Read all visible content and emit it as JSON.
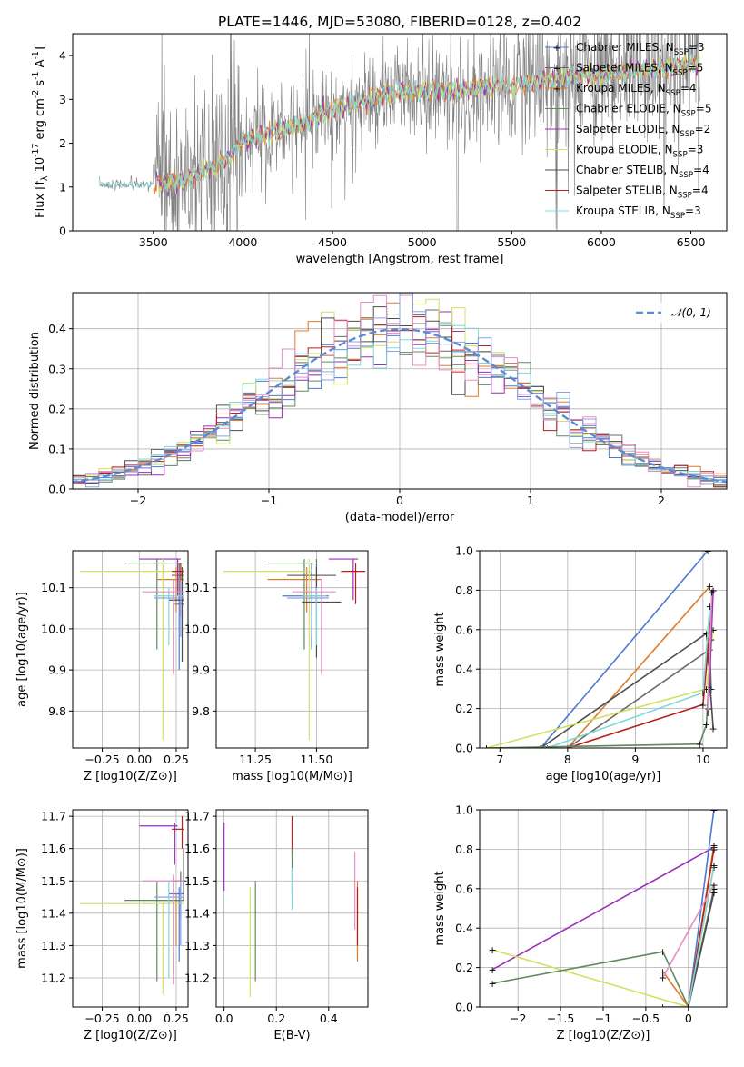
{
  "palette": {
    "Chabrier MILES": "#4b7bd1",
    "Salpeter MILES": "#6b6b6b",
    "Kroupa MILES": "#e07b2a",
    "Chabrier ELODIE": "#5e8a5e",
    "Salpeter ELODIE": "#9b2fb8",
    "Kroupa ELODIE": "#d4e060",
    "Chabrier STELIB": "#4d4d4d",
    "Salpeter STELIB": "#b81f1f",
    "Kroupa STELIB": "#7fd8d8",
    "extra1": "#e58fc7",
    "extra2": "#8aa0e8",
    "normal": "#5b8bd6",
    "data": "#808080"
  },
  "chart_data": [
    {
      "type": "line",
      "title": "PLATE=1446, MJD=53080, FIBERID=0128, z=0.402",
      "xlabel": "wavelength [Angstrom, rest frame]",
      "ylabel": "Flux [f_λ 10^-17 erg cm^-2 s^-1 A^-1]",
      "xlim": [
        3050,
        6700
      ],
      "ylim": [
        0,
        4.5
      ],
      "xticks": [
        3500,
        4000,
        4500,
        5000,
        5500,
        6000,
        6500
      ],
      "yticks": [
        0,
        1,
        2,
        3,
        4
      ],
      "grid": false,
      "legend_position": "top-right",
      "legend": [
        "Chabrier MILES, N_SSP=3",
        "Salpeter MILES, N_SSP=5",
        "Kroupa MILES, N_SSP=4",
        "Chabrier ELODIE, N_SSP=5",
        "Salpeter ELODIE, N_SSP=2",
        "Kroupa ELODIE, N_SSP=3",
        "Chabrier STELIB, N_SSP=4",
        "Salpeter STELIB, N_SSP=4",
        "Kroupa STELIB, N_SSP=3"
      ],
      "continuum": {
        "x": [
          3200,
          3500,
          3700,
          3900,
          4000,
          4100,
          4300,
          4500,
          4700,
          4900,
          5100,
          5300,
          5500,
          5700,
          5900,
          6100,
          6300,
          6550
        ],
        "y": [
          1.05,
          1.05,
          1.2,
          1.6,
          2.0,
          2.2,
          2.4,
          2.75,
          3.0,
          3.2,
          3.2,
          3.25,
          3.3,
          3.45,
          3.55,
          3.6,
          3.7,
          3.85
        ]
      }
    },
    {
      "type": "line",
      "xlabel": "(data-model)/error",
      "ylabel": "Normed distribution",
      "xlim": [
        -2.5,
        2.5
      ],
      "ylim": [
        0,
        0.49
      ],
      "xticks": [
        -2,
        -1,
        0,
        1,
        2
      ],
      "yticks": [
        0.0,
        0.1,
        0.2,
        0.3,
        0.4
      ],
      "grid": true,
      "legend_position": "top-right",
      "legend": [
        "𝒩(0, 1)"
      ],
      "bin_width": 0.1
    },
    {
      "type": "scatter",
      "xlabel": "Z [log10(Z/Z⊙)]",
      "ylabel": "age [log10(age/yr)]",
      "xlim": [
        -0.45,
        0.33
      ],
      "ylim": [
        9.71,
        10.19
      ],
      "xticks": [
        -0.25,
        0.0,
        0.25
      ],
      "yticks": [
        9.8,
        9.9,
        10.0,
        10.1
      ],
      "grid": true,
      "points": [
        {
          "c": "Chabrier MILES",
          "x": 0.27,
          "xlo": 0.24,
          "xhi": 0.3,
          "y": 10.06,
          "ylo": 9.9,
          "yhi": 10.08
        },
        {
          "c": "Salpeter MILES",
          "x": 0.27,
          "xlo": 0.22,
          "xhi": 0.3,
          "y": 10.13,
          "ylo": 10.07,
          "yhi": 10.16
        },
        {
          "c": "Kroupa MILES",
          "x": 0.25,
          "xlo": 0.12,
          "xhi": 0.3,
          "y": 10.12,
          "ylo": 10.04,
          "yhi": 10.15
        },
        {
          "c": "Chabrier ELODIE",
          "x": 0.12,
          "xlo": -0.1,
          "xhi": 0.3,
          "y": 10.16,
          "ylo": 9.95,
          "yhi": 10.17
        },
        {
          "c": "Salpeter ELODIE",
          "x": 0.26,
          "xlo": 0.0,
          "xhi": 0.28,
          "y": 10.17,
          "ylo": 10.08,
          "yhi": 10.17
        },
        {
          "c": "Kroupa ELODIE",
          "x": 0.16,
          "xlo": -0.4,
          "xhi": 0.3,
          "y": 10.14,
          "ylo": 9.73,
          "yhi": 10.17
        },
        {
          "c": "Chabrier STELIB",
          "x": 0.29,
          "xlo": 0.2,
          "xhi": 0.3,
          "y": 10.07,
          "ylo": 9.92,
          "yhi": 10.15
        },
        {
          "c": "Salpeter STELIB",
          "x": 0.28,
          "xlo": 0.22,
          "xhi": 0.3,
          "y": 10.14,
          "ylo": 10.03,
          "yhi": 10.16
        },
        {
          "c": "Kroupa STELIB",
          "x": 0.2,
          "xlo": 0.1,
          "xhi": 0.3,
          "y": 10.08,
          "ylo": 9.96,
          "yhi": 10.1
        },
        {
          "c": "extra1",
          "x": 0.23,
          "xlo": 0.02,
          "xhi": 0.3,
          "y": 10.09,
          "ylo": 9.89,
          "yhi": 10.12
        },
        {
          "c": "extra2",
          "x": 0.28,
          "xlo": 0.1,
          "xhi": 0.3,
          "y": 10.075,
          "ylo": 9.98,
          "yhi": 10.12
        }
      ]
    },
    {
      "type": "scatter",
      "xlabel": "mass [log10(M/M⊙)]",
      "ylabel": "",
      "xlim": [
        11.09,
        11.71
      ],
      "ylim": [
        9.71,
        10.19
      ],
      "xticks": [
        11.25,
        11.5
      ],
      "yticks": [
        9.8,
        9.9,
        10.0,
        10.1
      ],
      "grid": true,
      "points": [
        {
          "c": "Chabrier MILES",
          "x": 11.48,
          "xlo": 11.36,
          "xhi": 11.55,
          "y": 10.08,
          "ylo": 9.95,
          "yhi": 10.16
        },
        {
          "c": "Salpeter MILES",
          "x": 11.5,
          "xlo": 11.38,
          "xhi": 11.58,
          "y": 10.13,
          "ylo": 10.07,
          "yhi": 10.17
        },
        {
          "c": "Kroupa MILES",
          "x": 11.46,
          "xlo": 11.3,
          "xhi": 11.52,
          "y": 10.12,
          "ylo": 10.04,
          "yhi": 10.15
        },
        {
          "c": "Chabrier ELODIE",
          "x": 11.45,
          "xlo": 11.3,
          "xhi": 11.49,
          "y": 10.16,
          "ylo": 9.95,
          "yhi": 10.17
        },
        {
          "c": "Salpeter ELODIE",
          "x": 11.65,
          "xlo": 11.55,
          "xhi": 11.67,
          "y": 10.17,
          "ylo": 10.07,
          "yhi": 10.17
        },
        {
          "c": "Kroupa ELODIE",
          "x": 11.47,
          "xlo": 11.12,
          "xhi": 11.48,
          "y": 10.14,
          "ylo": 9.73,
          "yhi": 10.17
        },
        {
          "c": "Chabrier STELIB",
          "x": 11.5,
          "xlo": 11.44,
          "xhi": 11.6,
          "y": 10.065,
          "ylo": 9.93,
          "yhi": 10.15
        },
        {
          "c": "Salpeter STELIB",
          "x": 11.66,
          "xlo": 11.6,
          "xhi": 11.7,
          "y": 10.14,
          "ylo": 10.06,
          "yhi": 10.16
        },
        {
          "c": "Kroupa STELIB",
          "x": 11.5,
          "xlo": 11.44,
          "xhi": 11.54,
          "y": 10.08,
          "ylo": 9.96,
          "yhi": 10.1
        },
        {
          "c": "extra1",
          "x": 11.52,
          "xlo": 11.4,
          "xhi": 11.58,
          "y": 10.09,
          "ylo": 9.89,
          "yhi": 10.12
        },
        {
          "c": "extra2",
          "x": 11.48,
          "xlo": 11.38,
          "xhi": 11.55,
          "y": 10.075,
          "ylo": 9.98,
          "yhi": 10.12
        }
      ]
    },
    {
      "type": "line",
      "xlabel": "age [log10(age/yr)]",
      "ylabel": "mass weight",
      "xlim": [
        6.7,
        10.35
      ],
      "ylim": [
        0.0,
        1.0
      ],
      "xticks": [
        7,
        8,
        9,
        10
      ],
      "yticks": [
        0.0,
        0.2,
        0.4,
        0.6,
        0.8,
        1.0
      ],
      "grid": true,
      "series": [
        {
          "c": "Chabrier MILES",
          "x": [
            7.6,
            10.07
          ],
          "y": [
            0.0,
            1.0
          ]
        },
        {
          "c": "Kroupa MILES",
          "x": [
            8.0,
            10.1
          ],
          "y": [
            0.0,
            0.82
          ]
        },
        {
          "c": "Salpeter MILES",
          "x": [
            8.0,
            10.1,
            10.12
          ],
          "y": [
            0.0,
            0.5,
            0.3
          ]
        },
        {
          "c": "Chabrier STELIB",
          "x": [
            7.6,
            10.05,
            10.15
          ],
          "y": [
            0.0,
            0.58,
            0.1
          ]
        },
        {
          "c": "Salpeter STELIB",
          "x": [
            8.0,
            10.0,
            10.15
          ],
          "y": [
            0.0,
            0.22,
            0.8
          ]
        },
        {
          "c": "Kroupa ELODIE",
          "x": [
            6.8,
            10.05,
            10.15
          ],
          "y": [
            0.0,
            0.3,
            0.6
          ]
        },
        {
          "c": "Kroupa STELIB",
          "x": [
            7.7,
            10.0,
            10.1
          ],
          "y": [
            0.0,
            0.28,
            0.72
          ]
        },
        {
          "c": "Chabrier ELODIE",
          "x": [
            6.8,
            9.95,
            10.05,
            10.12
          ],
          "y": [
            0.0,
            0.02,
            0.12,
            0.55
          ]
        },
        {
          "c": "Salpeter ELODIE",
          "x": [
            10.08,
            10.15
          ],
          "y": [
            0.2,
            0.8
          ]
        },
        {
          "c": "extra1",
          "x": [
            10.07,
            10.13
          ],
          "y": [
            0.18,
            0.79
          ]
        }
      ]
    },
    {
      "type": "scatter",
      "xlabel": "Z [log10(Z/Z⊙)]",
      "ylabel": "mass [log10(M/M⊙)]",
      "xlim": [
        -0.45,
        0.33
      ],
      "ylim": [
        11.11,
        11.72
      ],
      "xticks": [
        -0.25,
        0.0,
        0.25
      ],
      "yticks": [
        11.2,
        11.3,
        11.4,
        11.5,
        11.6,
        11.7
      ],
      "grid": true,
      "points": [
        {
          "c": "Chabrier MILES",
          "x": 0.27,
          "xlo": 0.2,
          "xhi": 0.3,
          "y": 11.46,
          "ylo": 11.25,
          "yhi": 11.48
        },
        {
          "c": "Salpeter MILES",
          "x": 0.28,
          "xlo": 0.22,
          "xhi": 0.3,
          "y": 11.5,
          "ylo": 11.38,
          "yhi": 11.53
        },
        {
          "c": "Kroupa MILES",
          "x": 0.25,
          "xlo": 0.12,
          "xhi": 0.3,
          "y": 11.44,
          "ylo": 11.3,
          "yhi": 11.46
        },
        {
          "c": "Chabrier ELODIE",
          "x": 0.12,
          "xlo": -0.1,
          "xhi": 0.3,
          "y": 11.44,
          "ylo": 11.19,
          "yhi": 11.5
        },
        {
          "c": "Salpeter ELODIE",
          "x": 0.24,
          "xlo": 0.0,
          "xhi": 0.26,
          "y": 11.67,
          "ylo": 11.55,
          "yhi": 11.68
        },
        {
          "c": "Kroupa ELODIE",
          "x": 0.16,
          "xlo": -0.4,
          "xhi": 0.3,
          "y": 11.43,
          "ylo": 11.15,
          "yhi": 11.43
        },
        {
          "c": "Chabrier STELIB",
          "x": 0.3,
          "xlo": 0.22,
          "xhi": 0.32,
          "y": 11.5,
          "ylo": 11.44,
          "yhi": 11.6
        },
        {
          "c": "Salpeter STELIB",
          "x": 0.29,
          "xlo": 0.22,
          "xhi": 0.3,
          "y": 11.66,
          "ylo": 11.6,
          "yhi": 11.7
        },
        {
          "c": "Kroupa STELIB",
          "x": 0.2,
          "xlo": 0.1,
          "xhi": 0.3,
          "y": 11.45,
          "ylo": 11.2,
          "yhi": 11.5
        },
        {
          "c": "extra1",
          "x": 0.23,
          "xlo": 0.02,
          "xhi": 0.3,
          "y": 11.5,
          "ylo": 11.18,
          "yhi": 11.52
        },
        {
          "c": "extra2",
          "x": 0.28,
          "xlo": 0.1,
          "xhi": 0.3,
          "y": 11.45,
          "ylo": 11.3,
          "yhi": 11.5
        }
      ]
    },
    {
      "type": "scatter",
      "xlabel": "E(B-V)",
      "ylabel": "",
      "xlim": [
        -0.03,
        0.55
      ],
      "ylim": [
        11.11,
        11.72
      ],
      "xticks": [
        0.0,
        0.2,
        0.4
      ],
      "yticks": [
        11.2,
        11.3,
        11.4,
        11.5,
        11.6,
        11.7
      ],
      "grid": true,
      "points": [
        {
          "c": "Salpeter ELODIE",
          "x": 0.0,
          "ylo": 11.47,
          "yhi": 11.68
        },
        {
          "c": "Kroupa ELODIE",
          "x": 0.1,
          "ylo": 11.14,
          "yhi": 11.48
        },
        {
          "c": "Chabrier ELODIE",
          "x": 0.12,
          "ylo": 11.19,
          "yhi": 11.5
        },
        {
          "c": "Salpeter STELIB",
          "x": 0.26,
          "ylo": 11.58,
          "yhi": 11.7
        },
        {
          "c": "Chabrier ELODIE",
          "x": 0.26,
          "ylo": 11.46,
          "yhi": 11.6
        },
        {
          "c": "Kroupa STELIB",
          "x": 0.26,
          "ylo": 11.41,
          "yhi": 11.54
        },
        {
          "c": "extra1",
          "x": 0.5,
          "ylo": 11.35,
          "yhi": 11.59
        },
        {
          "c": "Kroupa MILES",
          "x": 0.51,
          "ylo": 11.25,
          "yhi": 11.5
        },
        {
          "c": "Salpeter STELIB",
          "x": 0.51,
          "ylo": 11.3,
          "yhi": 11.48
        }
      ]
    },
    {
      "type": "line",
      "xlabel": "Z [log10(Z/Z⊙)]",
      "ylabel": "mass weight",
      "xlim": [
        -2.45,
        0.45
      ],
      "ylim": [
        0.0,
        1.0
      ],
      "xticks": [
        -2.0,
        -1.5,
        -1.0,
        -0.5,
        0.0
      ],
      "yticks": [
        0.0,
        0.2,
        0.4,
        0.6,
        0.8,
        1.0
      ],
      "grid": true,
      "series": [
        {
          "c": "Salpeter ELODIE",
          "x": [
            -2.3,
            0.3
          ],
          "y": [
            0.19,
            0.81
          ]
        },
        {
          "c": "Kroupa ELODIE",
          "x": [
            -2.3,
            0.0,
            0.3
          ],
          "y": [
            0.29,
            0.0,
            0.71
          ]
        },
        {
          "c": "Chabrier ELODIE",
          "x": [
            -2.3,
            -0.3,
            0.0,
            0.3
          ],
          "y": [
            0.12,
            0.28,
            0.0,
            0.6
          ]
        },
        {
          "c": "Chabrier MILES",
          "x": [
            -0.3,
            0.0,
            0.3
          ],
          "y": [
            0.0,
            0.0,
            1.0
          ]
        },
        {
          "c": "Kroupa MILES",
          "x": [
            -0.3,
            0.0,
            0.3
          ],
          "y": [
            0.18,
            0.0,
            0.82
          ]
        },
        {
          "c": "Salpeter MILES",
          "x": [
            0.0,
            0.3
          ],
          "y": [
            0.0,
            0.6
          ]
        },
        {
          "c": "Chabrier STELIB",
          "x": [
            0.0,
            0.3
          ],
          "y": [
            0.0,
            0.58
          ]
        },
        {
          "c": "Salpeter STELIB",
          "x": [
            0.0,
            0.3
          ],
          "y": [
            0.0,
            0.8
          ]
        },
        {
          "c": "Kroupa STELIB",
          "x": [
            0.0,
            0.3
          ],
          "y": [
            0.0,
            0.72
          ]
        },
        {
          "c": "extra1",
          "x": [
            -0.3,
            0.3
          ],
          "y": [
            0.15,
            0.62
          ]
        }
      ]
    }
  ]
}
